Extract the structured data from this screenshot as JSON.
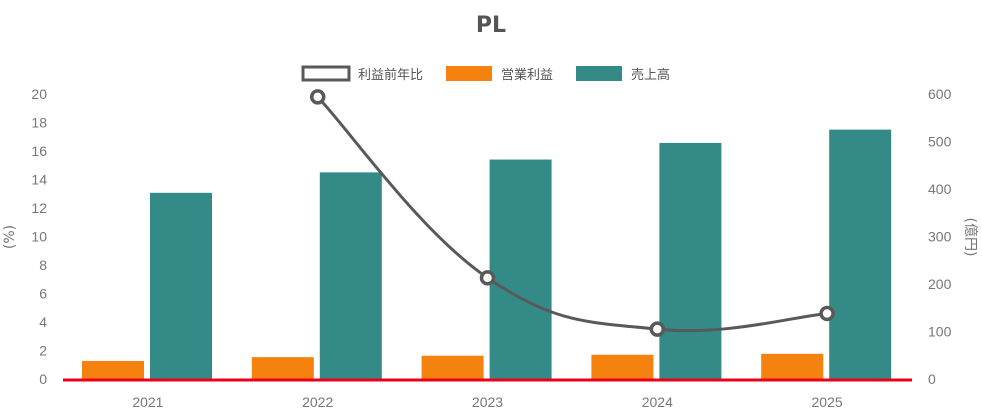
{
  "chart_data": {
    "type": "bar",
    "title": "PL",
    "categories": [
      "2021",
      "2022",
      "2023",
      "2024",
      "2025"
    ],
    "y_left": {
      "label": "(%)",
      "range": [
        0,
        20
      ],
      "ticks": [
        "0",
        "2",
        "4",
        "6",
        "8",
        "10",
        "12",
        "14",
        "16",
        "18",
        "20"
      ]
    },
    "y_right": {
      "label": "(億円)",
      "range": [
        0,
        600
      ],
      "ticks": [
        "0",
        "100",
        "200",
        "300",
        "400",
        "500",
        "600"
      ]
    },
    "series": [
      {
        "name": "利益前年比",
        "type": "line",
        "axis": "left",
        "color": "#595959",
        "values": [
          null,
          19.8,
          7.1,
          3.5,
          4.6
        ]
      },
      {
        "name": "営業利益",
        "type": "bar",
        "axis": "right",
        "color": "#f5820f",
        "values": [
          38,
          46,
          49,
          51,
          53
        ]
      },
      {
        "name": "売上高",
        "type": "bar",
        "axis": "right",
        "color": "#338a86",
        "values": [
          392,
          435,
          462,
          497,
          525
        ]
      }
    ],
    "legend_position": "top-center",
    "grid": false,
    "baseline_color": "#e8001c"
  }
}
